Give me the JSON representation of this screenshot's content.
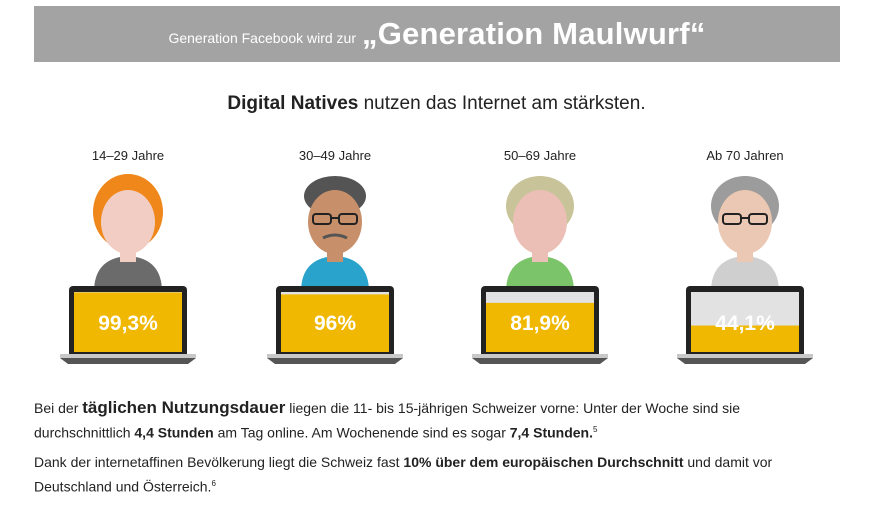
{
  "header": {
    "prefix": "Generation Facebook wird zur",
    "title": "„Generation Maulwurf“"
  },
  "subtitle": {
    "bold": "Digital Natives",
    "rest": " nutzen das Internet am stärksten."
  },
  "chart_data": {
    "type": "bar",
    "title": "Digital Natives nutzen das Internet am stärksten.",
    "categories": [
      "14–29 Jahre",
      "30–49 Jahre",
      "50–69 Jahre",
      "Ab 70 Jahren"
    ],
    "values": [
      99.3,
      96,
      81.9,
      44.1
    ],
    "value_labels": [
      "99,3%",
      "96%",
      "81,9%",
      "44,1%"
    ],
    "ylim": [
      0,
      100
    ],
    "unit": "%"
  },
  "colors": {
    "bar_fill": "#f0b800",
    "screen_empty": "#e2e2e2",
    "laptop_frame": "#222222",
    "banner": "#a3a3a3"
  },
  "paragraph1": {
    "t1": "Bei der ",
    "kw": "täglichen Nutzungsdauer",
    "t2": " liegen die 11- bis 15-jährigen Schweizer vorne: Unter der Woche sind sie durchschnittlich ",
    "b1": "4,4 Stunden",
    "t3": " am Tag online. Am Wochenende sind es sogar ",
    "b2": "7,4 Stunden.",
    "sup": "5"
  },
  "paragraph2": {
    "t1": "Dank der internetaffinen Bevölkerung liegt die Schweiz fast ",
    "b1": "10% über dem europäischen Durchschnitt",
    "t2": " und damit vor Deutschland und Österreich.",
    "sup": "6"
  }
}
